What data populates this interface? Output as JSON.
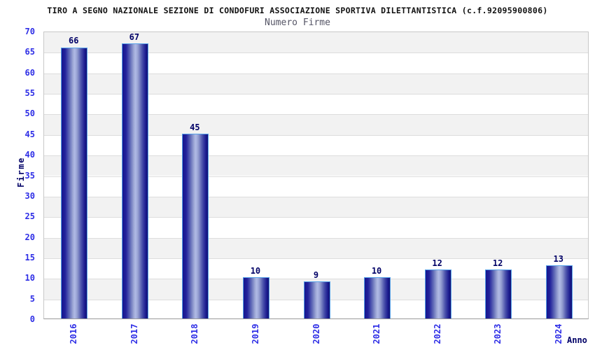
{
  "chart_data": {
    "type": "bar",
    "title": "TIRO A SEGNO NAZIONALE SEZIONE DI CONDOFURI ASSOCIAZIONE SPORTIVA DILETTANTISTICA (c.f.92095900806)",
    "subtitle": "Numero Firme",
    "xlabel": "Anno",
    "ylabel": "Firme",
    "categories": [
      "2016",
      "2017",
      "2018",
      "2019",
      "2020",
      "2021",
      "2022",
      "2023",
      "2024"
    ],
    "values": [
      66,
      67,
      45,
      10,
      9,
      10,
      12,
      12,
      13
    ],
    "ylim": [
      0,
      70
    ],
    "ytick_step": 5,
    "legend": "none",
    "grid": "horizontal-bands",
    "colors": {
      "title": "#111111",
      "subtitle": "#555566",
      "tick_label": "#2e2ee6",
      "data_label": "#000066",
      "axis_title": "#000066",
      "band_gray": "#f2f2f2",
      "band_white": "#ffffff",
      "gridline": "#dddddd",
      "plot_border": "#c8c8c8",
      "axis_line": "#999999",
      "bar_border": "#55a0e8",
      "bar_dark": "#16168e",
      "bar_light": "#b0bae6"
    }
  }
}
